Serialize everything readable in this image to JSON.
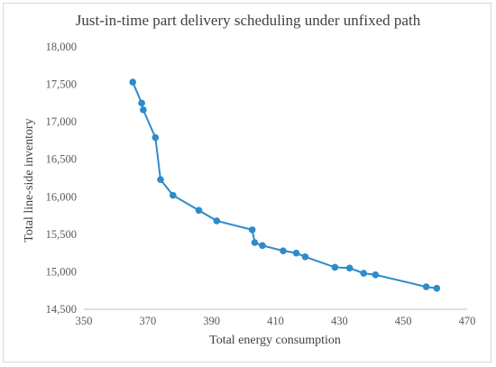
{
  "chart_data": {
    "type": "line",
    "title": "Just-in-time part delivery scheduling under unfixed path",
    "xlabel": "Total energy consumption",
    "ylabel": "Total line-side inventory",
    "xlim": [
      350,
      470
    ],
    "ylim": [
      14500,
      18000
    ],
    "xticks": [
      350,
      370,
      390,
      410,
      430,
      450,
      470
    ],
    "yticks": [
      14500,
      15000,
      15500,
      16000,
      16500,
      17000,
      17500,
      18000
    ],
    "ytick_labels": [
      "14,500",
      "15,000",
      "15,500",
      "16,000",
      "16,500",
      "17,000",
      "17,500",
      "18,000"
    ],
    "grid": "none",
    "legend": "none",
    "series": [
      {
        "color": "#2e8bc9",
        "x": [
          365.3,
          368.1,
          368.6,
          372.4,
          374.0,
          377.9,
          386.0,
          391.6,
          402.7,
          403.5,
          405.9,
          412.4,
          416.5,
          419.3,
          428.6,
          433.2,
          437.6,
          441.3,
          457.2,
          460.5
        ],
        "y": [
          17530,
          17250,
          17160,
          16790,
          16230,
          16020,
          15820,
          15680,
          15560,
          15390,
          15350,
          15280,
          15250,
          15200,
          15060,
          15050,
          14980,
          14960,
          14800,
          14780
        ]
      }
    ]
  }
}
